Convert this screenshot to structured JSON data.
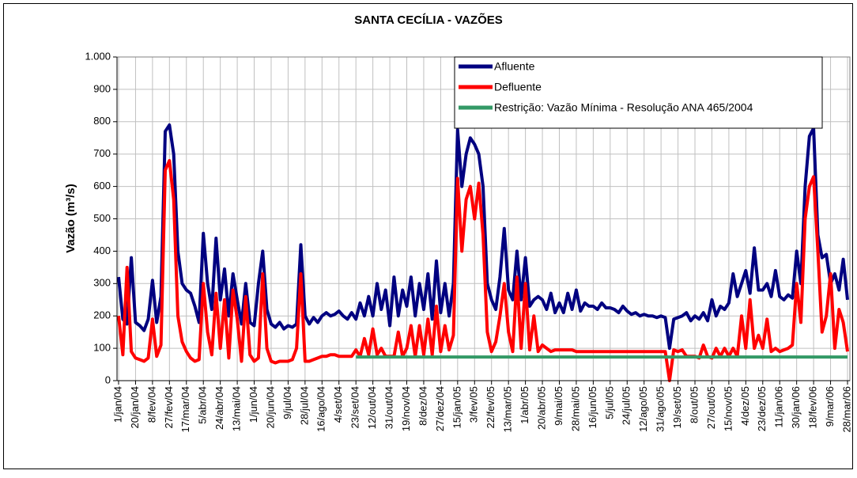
{
  "chart_data": {
    "type": "line",
    "title": "SANTA CECÍLIA - VAZÕES",
    "y_label": "Vazão (m³/s)",
    "categories": [
      "1/jan/04",
      null,
      null,
      null,
      "20/jan/04",
      null,
      null,
      null,
      "8/fev/04",
      null,
      null,
      null,
      "27/fev/04",
      null,
      null,
      null,
      "17/mar/04",
      null,
      null,
      null,
      "5/abr/04",
      null,
      null,
      null,
      "24/abr/04",
      null,
      null,
      null,
      "13/mai/04",
      null,
      null,
      null,
      "1/jun/04",
      null,
      null,
      null,
      "20/jun/04",
      null,
      null,
      null,
      "9/jul/04",
      null,
      null,
      null,
      "28/jul/04",
      null,
      null,
      null,
      "16/ago/04",
      null,
      null,
      null,
      "4/set/04",
      null,
      null,
      null,
      "23/set/04",
      null,
      null,
      null,
      "12/out/04",
      null,
      null,
      null,
      "31/out/04",
      null,
      null,
      null,
      "19/nov/04",
      null,
      null,
      null,
      "8/dez/04",
      null,
      null,
      null,
      "27/dez/04",
      null,
      null,
      null,
      "15/jan/05",
      null,
      null,
      null,
      "3/fev/05",
      null,
      null,
      null,
      "22/fev/05",
      null,
      null,
      null,
      "13/mar/05",
      null,
      null,
      null,
      "1/abr/05",
      null,
      null,
      null,
      "20/abr/05",
      null,
      null,
      null,
      "9/mai/05",
      null,
      null,
      null,
      "28/mai/05",
      null,
      null,
      null,
      "16/jun/05",
      null,
      null,
      null,
      "5/jul/05",
      null,
      null,
      null,
      "24/jul/05",
      null,
      null,
      null,
      "12/ago/05",
      null,
      null,
      null,
      "31/ago/05",
      null,
      null,
      null,
      "19/set/05",
      null,
      null,
      null,
      "8/out/05",
      null,
      null,
      null,
      "27/out/05",
      null,
      null,
      null,
      "15/nov/05",
      null,
      null,
      null,
      "4/dez/05",
      null,
      null,
      null,
      "23/dez/05",
      null,
      null,
      null,
      "11/jan/06",
      null,
      null,
      null,
      "30/jan/06",
      null,
      null,
      null,
      "18/fev/06",
      null,
      null,
      null,
      "9/mar/06",
      null,
      null,
      null,
      "28/mar/06"
    ],
    "series": [
      {
        "name": "Afluente",
        "color": "#000080",
        "values": [
          320,
          190,
          175,
          380,
          180,
          170,
          155,
          190,
          310,
          180,
          260,
          770,
          790,
          700,
          400,
          300,
          280,
          270,
          230,
          180,
          455,
          300,
          220,
          440,
          250,
          345,
          200,
          330,
          250,
          175,
          300,
          180,
          170,
          300,
          400,
          220,
          175,
          165,
          180,
          160,
          170,
          165,
          175,
          420,
          200,
          175,
          195,
          180,
          200,
          210,
          200,
          205,
          215,
          200,
          190,
          210,
          190,
          240,
          200,
          260,
          200,
          300,
          220,
          280,
          170,
          320,
          200,
          280,
          230,
          320,
          200,
          300,
          220,
          330,
          190,
          370,
          210,
          300,
          200,
          300,
          775,
          600,
          700,
          750,
          730,
          700,
          600,
          300,
          250,
          220,
          320,
          470,
          280,
          250,
          400,
          250,
          380,
          230,
          250,
          260,
          250,
          220,
          270,
          210,
          240,
          210,
          270,
          220,
          280,
          215,
          240,
          230,
          230,
          220,
          240,
          225,
          225,
          220,
          210,
          230,
          215,
          205,
          210,
          200,
          205,
          200,
          200,
          195,
          200,
          195,
          100,
          190,
          195,
          200,
          210,
          185,
          200,
          190,
          210,
          185,
          250,
          200,
          230,
          220,
          240,
          330,
          260,
          300,
          340,
          270,
          410,
          280,
          280,
          300,
          260,
          340,
          260,
          250,
          265,
          255,
          400,
          300,
          600,
          755,
          780,
          450,
          380,
          390,
          300,
          330,
          280,
          375,
          250
        ]
      },
      {
        "name": "Defluente",
        "color": "#ff0000",
        "values": [
          200,
          80,
          350,
          90,
          70,
          65,
          60,
          70,
          190,
          75,
          110,
          650,
          680,
          560,
          200,
          120,
          90,
          70,
          60,
          65,
          300,
          150,
          80,
          270,
          100,
          250,
          70,
          280,
          190,
          60,
          260,
          80,
          60,
          70,
          330,
          100,
          60,
          55,
          60,
          60,
          60,
          65,
          100,
          330,
          60,
          60,
          65,
          70,
          75,
          75,
          80,
          80,
          75,
          75,
          75,
          75,
          95,
          75,
          130,
          80,
          160,
          80,
          100,
          75,
          75,
          75,
          150,
          75,
          100,
          170,
          75,
          170,
          80,
          190,
          80,
          230,
          90,
          170,
          95,
          140,
          625,
          400,
          560,
          600,
          500,
          610,
          450,
          150,
          90,
          120,
          200,
          300,
          150,
          90,
          320,
          100,
          300,
          95,
          200,
          90,
          110,
          100,
          90,
          95,
          95,
          95,
          95,
          95,
          90,
          90,
          90,
          90,
          90,
          90,
          90,
          90,
          90,
          90,
          90,
          90,
          90,
          90,
          90,
          90,
          90,
          90,
          90,
          90,
          90,
          90,
          0,
          95,
          90,
          95,
          75,
          75,
          75,
          70,
          110,
          75,
          70,
          100,
          75,
          100,
          75,
          100,
          75,
          200,
          100,
          250,
          100,
          140,
          100,
          190,
          90,
          100,
          90,
          95,
          100,
          110,
          300,
          180,
          500,
          600,
          630,
          400,
          150,
          200,
          330,
          100,
          220,
          180,
          90
        ]
      },
      {
        "name": "Restrição: Vazão Mínima - Resolução ANA 465/2004",
        "color": "#339966",
        "values": [
          null,
          null,
          null,
          null,
          null,
          null,
          null,
          null,
          null,
          null,
          null,
          null,
          null,
          null,
          null,
          null,
          null,
          null,
          null,
          null,
          null,
          null,
          null,
          null,
          null,
          null,
          null,
          null,
          null,
          null,
          null,
          null,
          null,
          null,
          null,
          null,
          null,
          null,
          null,
          null,
          null,
          null,
          null,
          null,
          null,
          null,
          null,
          null,
          null,
          null,
          null,
          null,
          null,
          null,
          null,
          null,
          73,
          73,
          73,
          73,
          73,
          73,
          73,
          73,
          73,
          73,
          73,
          73,
          73,
          73,
          73,
          73,
          73,
          73,
          73,
          73,
          73,
          73,
          73,
          73,
          73,
          73,
          73,
          73,
          73,
          73,
          73,
          73,
          73,
          73,
          73,
          73,
          73,
          73,
          73,
          73,
          73,
          73,
          73,
          73,
          73,
          73,
          73,
          73,
          73,
          73,
          73,
          73,
          73,
          73,
          73,
          73,
          73,
          73,
          73,
          73,
          73,
          73,
          73,
          73,
          73,
          73,
          73,
          73,
          73,
          73,
          73,
          73,
          73,
          73,
          73,
          73,
          73,
          73,
          73,
          73,
          73,
          73,
          73,
          73,
          73,
          73,
          73,
          73,
          73,
          73,
          73,
          73,
          73,
          73,
          73,
          73,
          73,
          73,
          73,
          73,
          73,
          73,
          73,
          73,
          73,
          73,
          73,
          73,
          73,
          73,
          73,
          73,
          73,
          73,
          73,
          73,
          73
        ]
      }
    ],
    "ylim": [
      0,
      1000
    ],
    "yticks": [
      0,
      100,
      200,
      300,
      400,
      500,
      600,
      700,
      800,
      900,
      {
        "value": 1000,
        "label": "1.000"
      }
    ],
    "grid": true,
    "legend": "top-right"
  }
}
